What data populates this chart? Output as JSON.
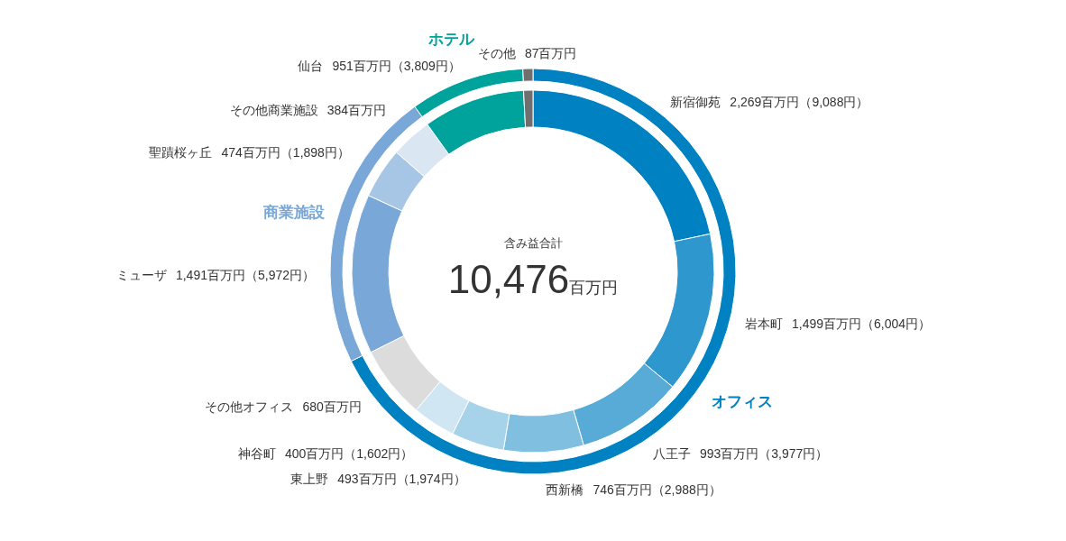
{
  "chart_data": [
    {
      "type": "donut",
      "title": "含み益合計",
      "annotations": [
        "10,476百万円"
      ],
      "categories": [
        "新宿御苑",
        "岩本町",
        "八王子",
        "西新橋",
        "東上野",
        "神谷町",
        "その他オフィス",
        "ミューザ",
        "聖蹟桜ヶ丘",
        "その他商業施設",
        "仙台",
        "その他"
      ],
      "values": [
        2269,
        1499,
        993,
        746,
        493,
        400,
        680,
        1491,
        474,
        384,
        951,
        87
      ],
      "colors": [
        "#0081c2",
        "#2e97cd",
        "#58abd7",
        "#80bfe0",
        "#a7d3ea",
        "#d1e6f3",
        "#dcdcdc",
        "#78a7d8",
        "#a7c6e6",
        "#dbe6f3",
        "#00a29c",
        "#6f6f6f"
      ],
      "value_labels": [
        "2,269百万円（9,088円）",
        "1,499百万円（6,004円）",
        "993百万円（3,977円）",
        "746百万円（2,988円）",
        "493百万円（1,974円）",
        "400百万円（1,602円）",
        "680百万円",
        "1,491百万円（5,972円）",
        "474百万円（1,898円）",
        "384百万円",
        "951百万円（3,809円）",
        "87百万円"
      ]
    },
    {
      "type": "donut",
      "categories": [
        "オフィス",
        "商業施設",
        "ホテル",
        null
      ],
      "values": [
        67.7,
        22.4,
        9.1,
        0.8
      ],
      "colors": [
        "#0081c2",
        "#78a7d8",
        "#00a29c",
        "#6f6f6f"
      ]
    }
  ]
}
